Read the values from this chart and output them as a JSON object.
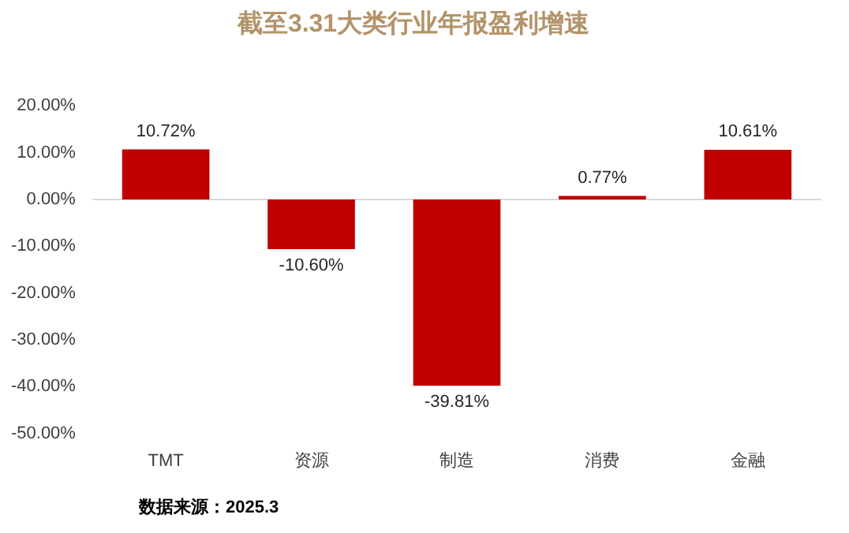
{
  "chart_data": {
    "type": "bar",
    "title": "截至3.31大类行业年报盈利增速",
    "categories": [
      "TMT",
      "资源",
      "制造",
      "消费",
      "金融"
    ],
    "values": [
      10.72,
      -10.6,
      -39.81,
      0.77,
      10.61
    ],
    "value_labels": [
      "10.72%",
      "-10.60%",
      "-39.81%",
      "0.77%",
      "10.61%"
    ],
    "color": "#c00000",
    "ylim": [
      -50,
      20
    ],
    "yticks": [
      {
        "value": -50,
        "label": "-50.00%"
      },
      {
        "value": -40,
        "label": "-40.00%"
      },
      {
        "value": -30,
        "label": "-30.00%"
      },
      {
        "value": -20,
        "label": "-20.00%"
      },
      {
        "value": -10,
        "label": "-10.00%"
      },
      {
        "value": 0,
        "label": "0.00%"
      },
      {
        "value": 10,
        "label": "10.00%"
      },
      {
        "value": 20,
        "label": "20.00%"
      }
    ],
    "legend": false,
    "annotations": [
      "数据来源：2025.3"
    ]
  }
}
